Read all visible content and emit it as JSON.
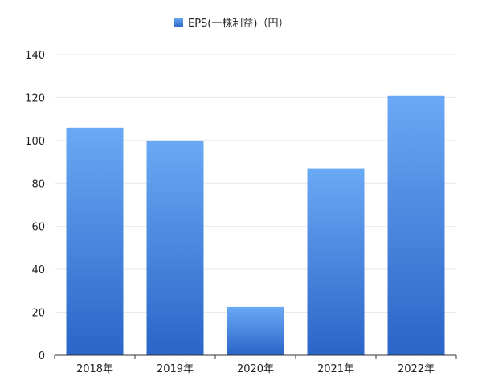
{
  "chart_data": {
    "type": "bar",
    "categories": [
      "2018年",
      "2019年",
      "2020年",
      "2021年",
      "2022年"
    ],
    "series": [
      {
        "name": "EPS(一株利益)（円）",
        "values": [
          106,
          100,
          22.5,
          87,
          121
        ]
      }
    ],
    "title": "",
    "xlabel": "",
    "ylabel": "",
    "ylim": [
      0,
      140
    ],
    "yticks": [
      "0",
      "20",
      "40",
      "60",
      "80",
      "100",
      "120",
      "140"
    ],
    "grid": true,
    "legend_position": "top-center",
    "colors": {
      "bar_top": "#6aa9f4",
      "bar_bottom": "#2a65c8"
    }
  }
}
